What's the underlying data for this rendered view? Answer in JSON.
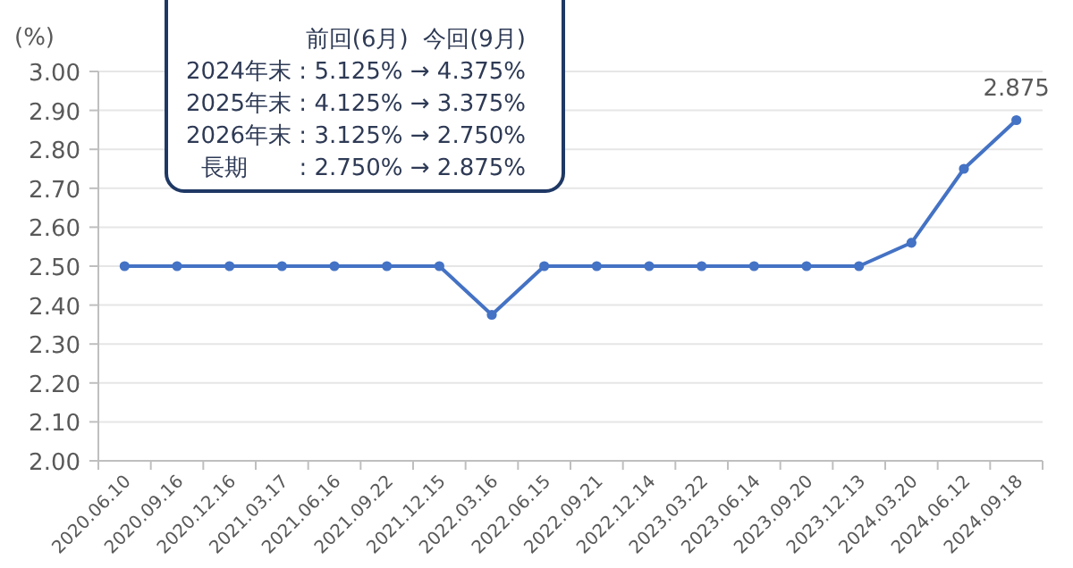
{
  "chart_data": {
    "type": "line",
    "ylabel": "(%)",
    "categories": [
      "2020.06.10",
      "2020.09.16",
      "2020.12.16",
      "2021.03.17",
      "2021.06.16",
      "2021.09.22",
      "2021.12.15",
      "2022.03.16",
      "2022.06.15",
      "2022.09.21",
      "2022.12.14",
      "2023.03.22",
      "2023.06.14",
      "2023.09.20",
      "2023.12.13",
      "2024.03.20",
      "2024.06.12",
      "2024.09.18"
    ],
    "values": [
      2.5,
      2.5,
      2.5,
      2.5,
      2.5,
      2.5,
      2.5,
      2.375,
      2.5,
      2.5,
      2.5,
      2.5,
      2.5,
      2.5,
      2.5,
      2.56,
      2.75,
      2.875
    ],
    "value_labels": [
      null,
      null,
      null,
      null,
      null,
      null,
      null,
      null,
      null,
      null,
      null,
      null,
      null,
      null,
      null,
      null,
      null,
      "2.875"
    ],
    "color": "#4472c4",
    "marker": "circle",
    "grid": "y",
    "ylim": [
      2.0,
      3.0
    ],
    "yticks": [
      {
        "value": 2.0,
        "label": "2.00"
      },
      {
        "value": 2.1,
        "label": "2.10"
      },
      {
        "value": 2.2,
        "label": "2.20"
      },
      {
        "value": 2.3,
        "label": "2.30"
      },
      {
        "value": 2.4,
        "label": "2.40"
      },
      {
        "value": 2.5,
        "label": "2.50"
      },
      {
        "value": 2.6,
        "label": "2.60"
      },
      {
        "value": 2.7,
        "label": "2.70"
      },
      {
        "value": 2.8,
        "label": "2.80"
      },
      {
        "value": 2.9,
        "label": "2.90"
      },
      {
        "value": 3.0,
        "label": "3.00"
      }
    ],
    "annotations": [
      "前回(6月)  今回(9月)",
      "2024年末 : 5.125% → 4.375%",
      "2025年末 : 4.125% → 3.375%",
      "2026年末 : 3.125% → 2.750%",
      "長期       : 2.750% → 2.875%"
    ]
  }
}
